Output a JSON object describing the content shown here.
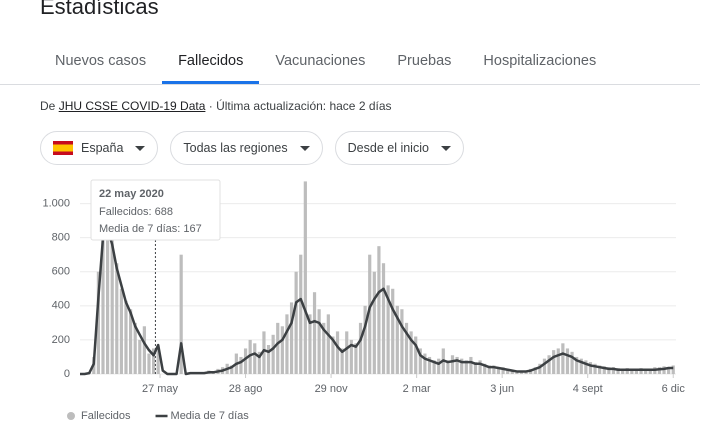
{
  "header": {
    "title": "Estadísticas"
  },
  "tabs": [
    {
      "label": "Nuevos casos"
    },
    {
      "label": "Fallecidos",
      "selected": true
    },
    {
      "label": "Vacunaciones"
    },
    {
      "label": "Pruebas"
    },
    {
      "label": "Hospitalizaciones"
    }
  ],
  "source": {
    "prefix": "De",
    "link": "JHU CSSE COVID-19 Data",
    "updated": "· Última actualización: hace 2 días"
  },
  "filters": [
    "España",
    "Todas las regiones",
    "Desde el inicio"
  ],
  "chart_data": {
    "type": "bar",
    "x": [
      0,
      5,
      10,
      15,
      20,
      25,
      30,
      35,
      40,
      45,
      50,
      55,
      60,
      65,
      70,
      75,
      80,
      85,
      90,
      95,
      100,
      105,
      110,
      115,
      120,
      125,
      130,
      135,
      140,
      145,
      150,
      155,
      160,
      165,
      170,
      175,
      180,
      185,
      190,
      195,
      200,
      205,
      210,
      215,
      220,
      225,
      230,
      235,
      240,
      245,
      250,
      255,
      260,
      265,
      270,
      275,
      280,
      285,
      290,
      295,
      300,
      305,
      310,
      315,
      320,
      325,
      330,
      335,
      340,
      345,
      350,
      355,
      360,
      365,
      370,
      375,
      380,
      385,
      390,
      395,
      400,
      405,
      410,
      415,
      420,
      425,
      430,
      435,
      440,
      445,
      450,
      455,
      460,
      465,
      470,
      475,
      480,
      485,
      490,
      495,
      500,
      505,
      510,
      515,
      520,
      525,
      530,
      535,
      540,
      545,
      550,
      555,
      560,
      565,
      570,
      575,
      580,
      585,
      590,
      595,
      600,
      605,
      610,
      615,
      620,
      625,
      630,
      635,
      640,
      645
    ],
    "series": [
      {
        "name": "Fallecidos",
        "type": "bar",
        "color": "#bdbdbd",
        "values": [
          0,
          0,
          10,
          100,
          600,
          950,
          850,
          800,
          650,
          500,
          430,
          380,
          300,
          200,
          280,
          120,
          150,
          150,
          0,
          0,
          0,
          0,
          700,
          0,
          10,
          0,
          10,
          5,
          20,
          15,
          30,
          40,
          60,
          50,
          120,
          100,
          150,
          200,
          180,
          130,
          250,
          170,
          230,
          300,
          280,
          350,
          420,
          600,
          700,
          1130,
          350,
          480,
          380,
          300,
          350,
          220,
          250,
          150,
          250,
          200,
          180,
          300,
          400,
          700,
          600,
          750,
          650,
          520,
          500,
          400,
          380,
          300,
          250,
          220,
          150,
          120,
          100,
          80,
          90,
          150,
          80,
          110,
          100,
          90,
          80,
          100,
          70,
          80,
          60,
          50,
          50,
          40,
          40,
          30,
          25,
          20,
          20,
          20,
          30,
          40,
          60,
          90,
          110,
          140,
          150,
          180,
          150,
          130,
          100,
          90,
          80,
          70,
          60,
          50,
          45,
          40,
          40,
          35,
          30,
          35,
          30,
          30,
          35,
          30,
          30,
          40,
          40,
          45,
          40,
          50
        ]
      },
      {
        "name": "Media de 7 días",
        "type": "line",
        "color": "#3c4043",
        "values": [
          0,
          0,
          5,
          60,
          450,
          800,
          850,
          760,
          620,
          520,
          420,
          360,
          280,
          230,
          180,
          140,
          110,
          170,
          20,
          0,
          0,
          0,
          180,
          0,
          5,
          5,
          5,
          5,
          10,
          10,
          15,
          20,
          30,
          40,
          60,
          70,
          90,
          110,
          120,
          100,
          140,
          130,
          150,
          180,
          200,
          250,
          300,
          420,
          440,
          370,
          300,
          310,
          300,
          260,
          230,
          200,
          160,
          130,
          150,
          170,
          160,
          200,
          280,
          390,
          440,
          480,
          500,
          440,
          380,
          330,
          280,
          240,
          200,
          170,
          110,
          90,
          80,
          70,
          60,
          80,
          70,
          75,
          80,
          70,
          70,
          70,
          60,
          60,
          50,
          40,
          40,
          35,
          30,
          25,
          20,
          15,
          15,
          15,
          20,
          30,
          40,
          60,
          80,
          100,
          110,
          120,
          110,
          100,
          80,
          70,
          60,
          50,
          45,
          40,
          35,
          30,
          30,
          25,
          25,
          25,
          25,
          25,
          25,
          25,
          25,
          25,
          28,
          30,
          35,
          35
        ]
      }
    ],
    "xlim": [
      0,
      648
    ],
    "xticks": [
      {
        "value": 87,
        "label": "27 may"
      },
      {
        "value": 180,
        "label": "28 ago"
      },
      {
        "value": 273,
        "label": "29 nov"
      },
      {
        "value": 366,
        "label": "2 mar"
      },
      {
        "value": 459,
        "label": "3 jun"
      },
      {
        "value": 552,
        "label": "4 sept"
      },
      {
        "value": 645,
        "label": "6 dic"
      }
    ],
    "ylim": [
      0,
      1150
    ],
    "yticks": [
      0,
      200,
      400,
      600,
      800,
      {
        "value": 1000,
        "label": "1.000"
      }
    ],
    "grid": true,
    "tooltip": {
      "x": 82,
      "title": "22 may 2020",
      "lines": [
        "Fallecidos: 688",
        "Media de 7 días: 167"
      ]
    }
  }
}
